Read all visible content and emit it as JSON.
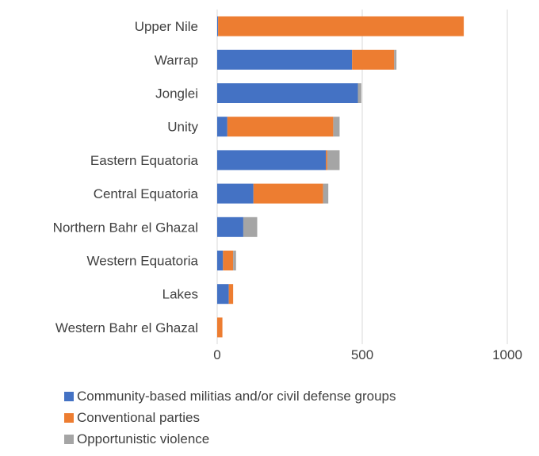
{
  "chart_data": {
    "type": "bar",
    "orientation": "horizontal",
    "stacked": true,
    "categories": [
      "Upper Nile",
      "Warrap",
      "Jonglei",
      "Unity",
      "Eastern Equatoria",
      "Central Equatoria",
      "Northern Bahr el Ghazal",
      "Western Equatoria",
      "Lakes",
      "Western Bahr el Ghazal"
    ],
    "series": [
      {
        "name": "Community-based militias and/or civil defense groups",
        "color": "#4472C4",
        "values": [
          3,
          465,
          485,
          35,
          375,
          125,
          90,
          20,
          40,
          0
        ]
      },
      {
        "name": "Conventional parties",
        "color": "#ED7D31",
        "values": [
          847,
          145,
          0,
          365,
          5,
          240,
          0,
          35,
          15,
          18
        ]
      },
      {
        "name": "Opportunistic violence",
        "color": "#A5A5A5",
        "values": [
          0,
          8,
          12,
          22,
          42,
          18,
          48,
          10,
          0,
          0
        ]
      }
    ],
    "xlim": [
      0,
      1000
    ],
    "xticks": [
      "0",
      "500",
      "1000"
    ],
    "grid": true,
    "legend": "bottom",
    "title": "",
    "xlabel": "",
    "ylabel": ""
  }
}
